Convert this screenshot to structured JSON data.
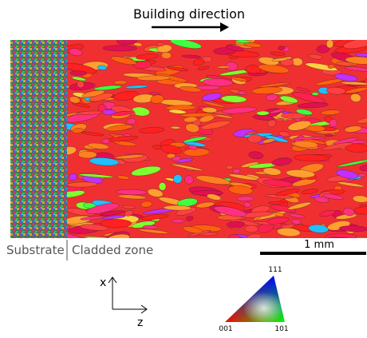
{
  "header": {
    "title": "Building direction"
  },
  "map": {
    "regions": [
      {
        "label": "Substrate"
      },
      {
        "label": "Cladded zone"
      }
    ],
    "scale_bar": "1 mm"
  },
  "axes": {
    "up": "x",
    "right": "z"
  },
  "ipf_key": {
    "top": "111",
    "left": "001",
    "right": "101"
  }
}
